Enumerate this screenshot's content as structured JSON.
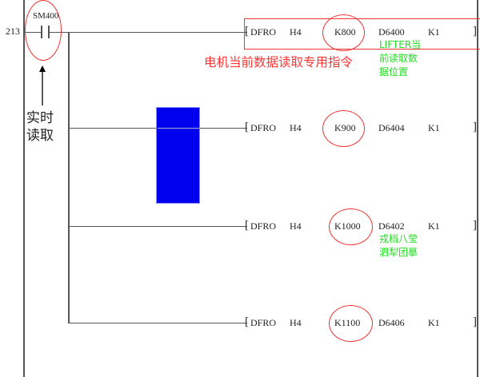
{
  "step_number": "213",
  "contact": {
    "label": "SM400"
  },
  "annotation_left": [
    "实时",
    "读取"
  ],
  "annotation_red": "电机当前数据读取专用指令",
  "rungs": [
    {
      "op": "DFRO",
      "a": "H4",
      "k": "K800",
      "d": "D6400",
      "n": "K1",
      "comment": [
        "LIFTER当",
        "前读取数",
        "据位置"
      ]
    },
    {
      "op": "DFRO",
      "a": "H4",
      "k": "K900",
      "d": "D6404",
      "n": "K1",
      "comment": []
    },
    {
      "op": "DFRO",
      "a": "H4",
      "k": "K1000",
      "d": "D6402",
      "n": "K1",
      "comment": [
        "戎档八莹",
        "泗犁团摹"
      ]
    },
    {
      "op": "DFRO",
      "a": "H4",
      "k": "K1100",
      "d": "D6406",
      "n": "K1",
      "comment": []
    }
  ],
  "colors": {
    "highlight": "#e33",
    "selection": "#0000ee",
    "comment": "#22dd22"
  }
}
